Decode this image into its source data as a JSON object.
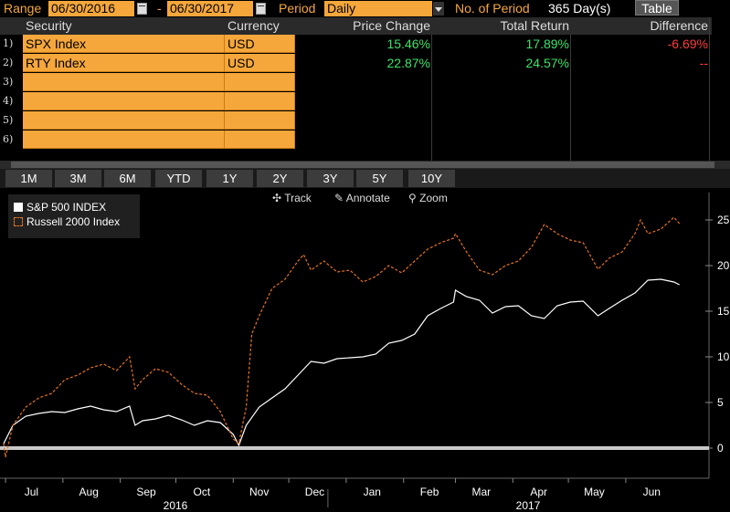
{
  "topbar": {
    "range_label": "Range",
    "start_date": "06/30/2016",
    "dash": "-",
    "end_date": "06/30/2017",
    "period_label": "Period",
    "period_value": "Daily",
    "num_period_label": "No. of Period",
    "num_period_value": "365 Day(s)",
    "table_button": "Table"
  },
  "table": {
    "headers": [
      "Security",
      "Currency",
      "Price Change",
      "Total Return",
      "Difference"
    ],
    "rows": [
      {
        "num": "1)",
        "security": "SPX Index",
        "currency": "USD",
        "price_change": "15.46%",
        "total_return": "17.89%",
        "difference": "-6.69%"
      },
      {
        "num": "2)",
        "security": "RTY Index",
        "currency": "USD",
        "price_change": "22.87%",
        "total_return": "24.57%",
        "difference": "--"
      },
      {
        "num": "3)",
        "security": "",
        "currency": "",
        "price_change": "",
        "total_return": "",
        "difference": ""
      },
      {
        "num": "4)",
        "security": "",
        "currency": "",
        "price_change": "",
        "total_return": "",
        "difference": ""
      },
      {
        "num": "5)",
        "security": "",
        "currency": "",
        "price_change": "",
        "total_return": "",
        "difference": ""
      },
      {
        "num": "6)",
        "security": "",
        "currency": "",
        "price_change": "",
        "total_return": "",
        "difference": ""
      }
    ]
  },
  "range_buttons": [
    "1M",
    "3M",
    "6M",
    "YTD",
    "1Y",
    "2Y",
    "3Y",
    "5Y",
    "10Y"
  ],
  "tools": {
    "track": "Track",
    "annotate": "Annotate",
    "zoom": "Zoom"
  },
  "colors": {
    "accent": "#f5a73b",
    "spx_line": "#ffffff",
    "rty_line": "#e8731e",
    "positive": "#3ee26a",
    "negative": "#ff3b3b"
  },
  "chart_data": {
    "type": "line",
    "title": "",
    "xlabel": "",
    "ylabel": "",
    "ylim": [
      -2.5,
      27.5
    ],
    "yticks": [
      0,
      5,
      10,
      15,
      20,
      25
    ],
    "x_months": [
      "Jul",
      "Aug",
      "Sep",
      "Oct",
      "Nov",
      "Dec",
      "Jan",
      "Feb",
      "Mar",
      "Apr",
      "May",
      "Jun"
    ],
    "x_years": [
      "2016",
      "2017"
    ],
    "legend": "top-left",
    "series": [
      {
        "name": "S&P 500 INDEX",
        "x": [
          "2016-06-30",
          "2016-07-05",
          "2016-07-12",
          "2016-07-19",
          "2016-07-26",
          "2016-08-02",
          "2016-08-09",
          "2016-08-16",
          "2016-08-23",
          "2016-08-30",
          "2016-09-06",
          "2016-09-09",
          "2016-09-13",
          "2016-09-20",
          "2016-09-27",
          "2016-10-04",
          "2016-10-11",
          "2016-10-18",
          "2016-10-25",
          "2016-11-01",
          "2016-11-04",
          "2016-11-08",
          "2016-11-15",
          "2016-11-22",
          "2016-11-29",
          "2016-12-06",
          "2016-12-13",
          "2016-12-20",
          "2016-12-27",
          "2017-01-03",
          "2017-01-10",
          "2017-01-17",
          "2017-01-24",
          "2017-01-31",
          "2017-02-07",
          "2017-02-14",
          "2017-02-21",
          "2017-02-28",
          "2017-03-01",
          "2017-03-07",
          "2017-03-14",
          "2017-03-21",
          "2017-03-28",
          "2017-04-04",
          "2017-04-11",
          "2017-04-18",
          "2017-04-25",
          "2017-05-02",
          "2017-05-09",
          "2017-05-17",
          "2017-05-23",
          "2017-05-30",
          "2017-06-06",
          "2017-06-13",
          "2017-06-20",
          "2017-06-27",
          "2017-06-30"
        ],
        "values": [
          0.5,
          2.5,
          3.5,
          3.8,
          4.0,
          3.9,
          4.3,
          4.6,
          4.2,
          4.0,
          4.6,
          2.5,
          3.0,
          3.2,
          3.6,
          3.1,
          2.5,
          3.0,
          2.8,
          1.5,
          0.3,
          2.5,
          4.5,
          5.5,
          6.5,
          8.0,
          9.5,
          9.3,
          9.8,
          9.9,
          10.0,
          10.3,
          11.5,
          11.8,
          12.5,
          14.5,
          15.3,
          16.0,
          17.3,
          16.6,
          16.2,
          14.8,
          15.5,
          15.6,
          14.5,
          14.2,
          15.6,
          16.0,
          16.1,
          14.5,
          15.3,
          16.2,
          17.0,
          18.4,
          18.5,
          18.2,
          17.9
        ]
      },
      {
        "name": "Russell 2000 Index",
        "x": [
          "2016-06-30",
          "2016-07-01",
          "2016-07-05",
          "2016-07-12",
          "2016-07-19",
          "2016-07-26",
          "2016-08-02",
          "2016-08-09",
          "2016-08-16",
          "2016-08-23",
          "2016-08-30",
          "2016-09-06",
          "2016-09-09",
          "2016-09-13",
          "2016-09-20",
          "2016-09-27",
          "2016-10-04",
          "2016-10-11",
          "2016-10-18",
          "2016-10-25",
          "2016-11-01",
          "2016-11-04",
          "2016-11-08",
          "2016-11-11",
          "2016-11-15",
          "2016-11-22",
          "2016-11-29",
          "2016-12-06",
          "2016-12-09",
          "2016-12-13",
          "2016-12-20",
          "2016-12-27",
          "2017-01-03",
          "2017-01-10",
          "2017-01-17",
          "2017-01-24",
          "2017-01-31",
          "2017-02-07",
          "2017-02-14",
          "2017-02-21",
          "2017-02-28",
          "2017-03-01",
          "2017-03-07",
          "2017-03-14",
          "2017-03-21",
          "2017-03-28",
          "2017-04-04",
          "2017-04-11",
          "2017-04-18",
          "2017-04-25",
          "2017-05-02",
          "2017-05-09",
          "2017-05-17",
          "2017-05-23",
          "2017-05-30",
          "2017-06-06",
          "2017-06-09",
          "2017-06-13",
          "2017-06-20",
          "2017-06-27",
          "2017-06-30"
        ],
        "values": [
          0.5,
          -1.0,
          2.5,
          4.5,
          5.5,
          6.0,
          7.5,
          8.0,
          8.8,
          9.2,
          8.5,
          10.0,
          6.5,
          7.5,
          8.7,
          8.3,
          7.0,
          6.0,
          5.8,
          4.0,
          1.0,
          0.5,
          4.5,
          12.5,
          14.5,
          17.5,
          18.5,
          20.5,
          21.2,
          19.5,
          20.5,
          19.3,
          19.5,
          18.2,
          18.8,
          20.0,
          19.2,
          20.5,
          21.8,
          22.5,
          23.0,
          23.5,
          21.5,
          19.5,
          19.0,
          20.0,
          20.5,
          22.0,
          24.5,
          23.5,
          22.8,
          22.5,
          19.6,
          20.8,
          21.5,
          23.5,
          25.0,
          23.5,
          24.0,
          25.3,
          24.6
        ]
      }
    ]
  }
}
